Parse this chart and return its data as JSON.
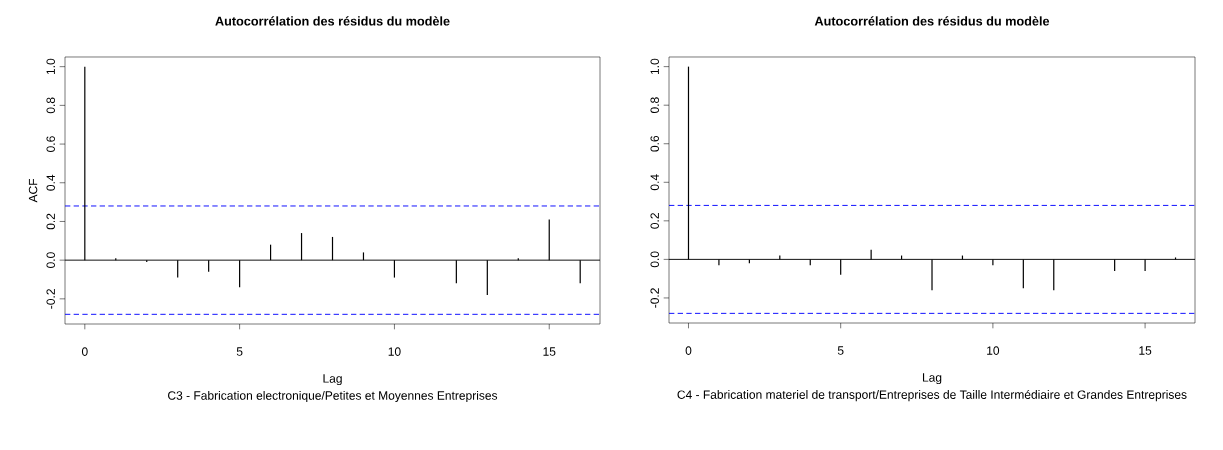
{
  "chart_data": [
    {
      "type": "bar",
      "title": "Autocorrélation des résidus du modèle",
      "xlabel": "Lag",
      "ylabel": "ACF",
      "annotations": [
        "C3 - Fabrication electronique/Petites et Moyennes Entreprises"
      ],
      "x": [
        0,
        1,
        2,
        3,
        4,
        5,
        6,
        7,
        8,
        9,
        10,
        11,
        12,
        13,
        14,
        15,
        16
      ],
      "values": [
        1.0,
        0.01,
        -0.01,
        -0.09,
        -0.06,
        -0.14,
        0.08,
        0.14,
        0.12,
        0.04,
        -0.09,
        null,
        -0.12,
        -0.18,
        0.01,
        0.21,
        -0.12
      ],
      "color": "#000000",
      "xlim": [
        -0.64,
        16.64
      ],
      "ylim": [
        -0.33,
        1.05
      ],
      "xticks": [
        0,
        5,
        10,
        15
      ],
      "yticks": [
        {
          "value": -0.2,
          "label": "-0.2"
        },
        {
          "value": 0,
          "label": "0.0"
        },
        {
          "value": 0.2,
          "label": "0.2"
        },
        {
          "value": 0.4,
          "label": "0.4"
        },
        {
          "value": 0.6,
          "label": "0.6"
        },
        {
          "value": 0.8,
          "label": "0.8"
        },
        {
          "value": 1,
          "label": "1.0"
        }
      ],
      "ref_lines": [
        {
          "axis": "y",
          "value": 0,
          "color": "#000000",
          "line_style": "solid"
        },
        {
          "axis": "y",
          "value": 0.28,
          "color": "#0000ff",
          "line_style": "dashed"
        },
        {
          "axis": "y",
          "value": -0.28,
          "color": "#0000ff",
          "line_style": "dashed"
        }
      ]
    },
    {
      "type": "bar",
      "title": "Autocorrélation des résidus du modèle",
      "xlabel": "Lag",
      "annotations": [
        "C4 - Fabrication materiel de transport/Entreprises de Taille Intermédiaire et Grandes Entreprises"
      ],
      "x": [
        0,
        1,
        2,
        3,
        4,
        5,
        6,
        7,
        8,
        9,
        10,
        11,
        12,
        13,
        14,
        15,
        16
      ],
      "values": [
        1.0,
        -0.03,
        -0.02,
        0.02,
        -0.03,
        -0.08,
        0.05,
        0.02,
        -0.16,
        0.02,
        -0.03,
        -0.15,
        -0.16,
        null,
        -0.06,
        -0.06,
        0.01
      ],
      "color": "#000000",
      "xlim": [
        -0.64,
        16.64
      ],
      "ylim": [
        -0.33,
        1.05
      ],
      "xticks": [
        0,
        5,
        10,
        15
      ],
      "yticks": [
        {
          "value": -0.2,
          "label": "-0.2"
        },
        {
          "value": 0,
          "label": "0.0"
        },
        {
          "value": 0.2,
          "label": "0.2"
        },
        {
          "value": 0.4,
          "label": "0.4"
        },
        {
          "value": 0.6,
          "label": "0.6"
        },
        {
          "value": 0.8,
          "label": "0.8"
        },
        {
          "value": 1,
          "label": "1.0"
        }
      ],
      "ref_lines": [
        {
          "axis": "y",
          "value": 0,
          "color": "#000000",
          "line_style": "solid"
        },
        {
          "axis": "y",
          "value": 0.28,
          "color": "#0000ff",
          "line_style": "dashed"
        },
        {
          "axis": "y",
          "value": -0.28,
          "color": "#0000ff",
          "line_style": "dashed"
        }
      ]
    }
  ]
}
